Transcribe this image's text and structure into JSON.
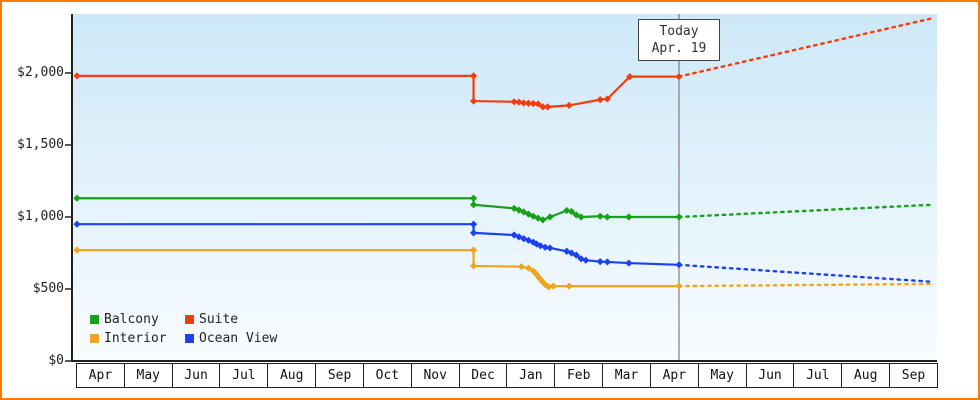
{
  "frame": {
    "border_color": "#FF7A00",
    "background": "#FFFFFF"
  },
  "today": {
    "line1": "Today",
    "line2": "Apr. 19"
  },
  "axes": {
    "y_ticks": [
      {
        "label": "$2,000",
        "value": 2000
      },
      {
        "label": "$1,500",
        "value": 1500
      },
      {
        "label": "$1,000",
        "value": 1000
      },
      {
        "label": "$500",
        "value": 500
      },
      {
        "label": "$0",
        "value": 0
      }
    ],
    "x_months": [
      "Apr",
      "May",
      "Jun",
      "Jul",
      "Aug",
      "Sep",
      "Oct",
      "Nov",
      "Dec",
      "Jan",
      "Feb",
      "Mar",
      "Apr",
      "May",
      "Jun",
      "Jul",
      "Aug",
      "Sep"
    ]
  },
  "chart_data": {
    "type": "line",
    "title": "",
    "x_unit": "months, Apr = 0 through following Sep = 17, fractional part = day of month",
    "x_range": [
      0,
      18
    ],
    "ylim": [
      0,
      2400
    ],
    "grid": false,
    "legend_position": "bottom-left-inside",
    "today_x": 12.6,
    "gradient": {
      "top": "#CDE8F8",
      "bottom": "#F8FCFF"
    },
    "axis_color": "#222222",
    "today_line_color": "#666666",
    "series": [
      {
        "name": "Balcony",
        "color": "#19A019",
        "points": [
          [
            0,
            1130
          ],
          [
            8.3,
            1130
          ],
          [
            8.3,
            1085
          ],
          [
            9.15,
            1060
          ],
          [
            9.25,
            1048
          ],
          [
            9.35,
            1035
          ],
          [
            9.45,
            1020
          ],
          [
            9.55,
            1005
          ],
          [
            9.65,
            992
          ],
          [
            9.75,
            980
          ],
          [
            9.9,
            1000
          ],
          [
            10.25,
            1045
          ],
          [
            10.35,
            1038
          ],
          [
            10.45,
            1015
          ],
          [
            10.55,
            1000
          ],
          [
            10.95,
            1005
          ],
          [
            11.1,
            1000
          ],
          [
            11.55,
            1000
          ],
          [
            12.6,
            1000
          ]
        ],
        "forecast": [
          [
            12.6,
            1000
          ],
          [
            17.9,
            1085
          ]
        ]
      },
      {
        "name": "Suite",
        "color": "#F43C0C",
        "points": [
          [
            0,
            1980
          ],
          [
            8.3,
            1980
          ],
          [
            8.3,
            1805
          ],
          [
            9.15,
            1800
          ],
          [
            9.25,
            1798
          ],
          [
            9.35,
            1792
          ],
          [
            9.45,
            1790
          ],
          [
            9.55,
            1788
          ],
          [
            9.65,
            1785
          ],
          [
            9.75,
            1765
          ],
          [
            9.85,
            1765
          ],
          [
            10.3,
            1775
          ],
          [
            10.95,
            1815
          ],
          [
            11.1,
            1820
          ],
          [
            11.57,
            1975
          ],
          [
            12.6,
            1975
          ]
        ],
        "forecast": [
          [
            12.6,
            1975
          ],
          [
            17.9,
            2380
          ]
        ]
      },
      {
        "name": "Interior",
        "color": "#F0A51C",
        "points": [
          [
            0,
            770
          ],
          [
            8.3,
            770
          ],
          [
            8.3,
            660
          ],
          [
            9.3,
            655
          ],
          [
            9.45,
            645
          ],
          [
            9.55,
            625
          ],
          [
            9.62,
            600
          ],
          [
            9.68,
            575
          ],
          [
            9.73,
            555
          ],
          [
            9.8,
            530
          ],
          [
            9.87,
            515
          ],
          [
            9.97,
            520
          ],
          [
            10.3,
            520
          ],
          [
            12.6,
            520
          ]
        ],
        "forecast": [
          [
            12.6,
            520
          ],
          [
            17.9,
            535
          ]
        ]
      },
      {
        "name": "Ocean View",
        "color": "#1C41EE",
        "points": [
          [
            0,
            950
          ],
          [
            8.3,
            950
          ],
          [
            8.3,
            890
          ],
          [
            9.15,
            875
          ],
          [
            9.25,
            862
          ],
          [
            9.35,
            850
          ],
          [
            9.45,
            838
          ],
          [
            9.55,
            825
          ],
          [
            9.62,
            812
          ],
          [
            9.7,
            800
          ],
          [
            9.8,
            790
          ],
          [
            9.9,
            785
          ],
          [
            10.25,
            762
          ],
          [
            10.35,
            750
          ],
          [
            10.45,
            735
          ],
          [
            10.55,
            710
          ],
          [
            10.65,
            700
          ],
          [
            10.95,
            690
          ],
          [
            11.1,
            688
          ],
          [
            11.55,
            680
          ],
          [
            12.6,
            668
          ]
        ],
        "forecast": [
          [
            12.6,
            668
          ],
          [
            17.9,
            550
          ]
        ]
      }
    ]
  }
}
